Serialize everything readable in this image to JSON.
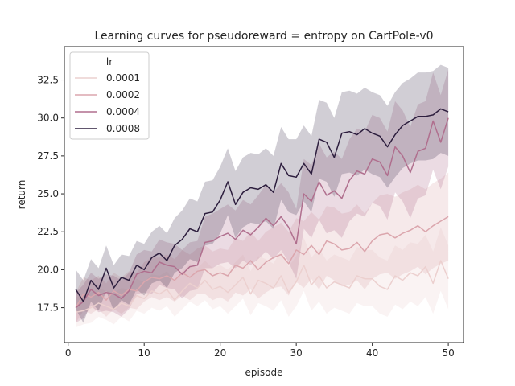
{
  "chart_data": {
    "type": "line",
    "title": "Learning curves for pseudoreward = entropy on CartPole-v0",
    "xlabel": "episode",
    "ylabel": "return",
    "xlim": [
      -0.5,
      52
    ],
    "ylim": [
      15.2,
      34.7
    ],
    "xticks": [
      0,
      10,
      20,
      30,
      40,
      50
    ],
    "yticks": [
      17.5,
      20.0,
      22.5,
      25.0,
      27.5,
      30.0,
      32.5
    ],
    "ytick_labels": [
      "17.5",
      "20.0",
      "22.5",
      "25.0",
      "27.5",
      "30.0",
      "32.5"
    ],
    "legend_title": "lr",
    "legend_position": "upper left",
    "x": [
      1,
      2,
      3,
      4,
      5,
      6,
      7,
      8,
      9,
      10,
      11,
      12,
      13,
      14,
      15,
      16,
      17,
      18,
      19,
      20,
      21,
      22,
      23,
      24,
      25,
      26,
      27,
      28,
      29,
      30,
      31,
      32,
      33,
      34,
      35,
      36,
      37,
      38,
      39,
      40,
      41,
      42,
      43,
      44,
      45,
      46,
      47,
      48,
      49,
      50
    ],
    "series": [
      {
        "name": "0.0001",
        "color": "#ecd0cf",
        "band_opacity": 0.25,
        "values": [
          17.2,
          17.3,
          17.5,
          17.8,
          17.6,
          17.4,
          17.8,
          17.6,
          18.3,
          18.1,
          18.6,
          18.4,
          18.7,
          18.0,
          18.6,
          19.1,
          18.8,
          19.3,
          18.7,
          18.9,
          18.5,
          19.0,
          19.5,
          18.4,
          19.3,
          19.1,
          18.8,
          19.6,
          18.5,
          19.2,
          20.3,
          19.0,
          19.6,
          18.8,
          19.2,
          19.0,
          18.8,
          19.6,
          19.4,
          19.4,
          18.9,
          18.7,
          19.6,
          19.3,
          19.8,
          19.6,
          20.2,
          19.1,
          20.6,
          19.4
        ],
        "lower": [
          16.2,
          16.4,
          16.5,
          16.9,
          16.7,
          16.4,
          16.9,
          16.6,
          17.3,
          17.1,
          17.5,
          17.3,
          17.6,
          16.9,
          17.4,
          17.9,
          17.6,
          18.0,
          17.4,
          17.6,
          17.1,
          17.6,
          18.1,
          17.0,
          17.8,
          17.6,
          17.3,
          18.0,
          16.9,
          17.6,
          18.6,
          17.3,
          17.9,
          17.1,
          17.5,
          17.3,
          17.1,
          17.8,
          17.6,
          17.6,
          17.1,
          16.9,
          17.7,
          17.4,
          17.9,
          17.6,
          18.2,
          17.1,
          18.6,
          17.4
        ],
        "upper": [
          18.2,
          18.3,
          18.5,
          18.8,
          18.6,
          18.5,
          18.8,
          18.7,
          19.4,
          19.2,
          19.7,
          19.6,
          19.9,
          19.2,
          19.9,
          20.4,
          20.1,
          20.6,
          20.1,
          20.3,
          20.0,
          20.5,
          21.0,
          19.9,
          20.9,
          20.7,
          20.4,
          21.3,
          20.2,
          20.9,
          22.1,
          20.8,
          21.4,
          20.6,
          21.0,
          20.8,
          20.6,
          21.5,
          21.3,
          21.3,
          20.8,
          20.6,
          21.6,
          21.3,
          21.8,
          21.7,
          22.3,
          21.2,
          22.8,
          21.6
        ]
      },
      {
        "name": "0.0002",
        "color": "#dba6ad",
        "band_opacity": 0.25,
        "values": [
          17.5,
          18.4,
          18.2,
          18.5,
          18.0,
          18.6,
          18.3,
          18.7,
          18.6,
          19.2,
          19.5,
          19.4,
          19.6,
          19.3,
          19.8,
          19.5,
          19.9,
          20.0,
          19.6,
          19.8,
          19.6,
          20.3,
          20.1,
          20.6,
          20.0,
          20.5,
          20.8,
          21.0,
          20.4,
          21.3,
          21.0,
          21.6,
          21.0,
          21.9,
          21.7,
          21.3,
          21.4,
          21.8,
          21.2,
          21.9,
          22.3,
          22.4,
          22.1,
          22.4,
          22.6,
          22.9,
          22.5,
          22.9,
          23.2,
          23.5
        ],
        "lower": [
          16.5,
          17.3,
          17.1,
          17.4,
          16.9,
          17.4,
          17.1,
          17.5,
          17.4,
          17.9,
          18.2,
          18.0,
          18.2,
          17.9,
          18.3,
          18.0,
          18.4,
          18.4,
          18.0,
          18.2,
          17.9,
          18.5,
          18.3,
          18.7,
          18.1,
          18.5,
          18.8,
          18.9,
          18.3,
          19.2,
          18.8,
          19.4,
          18.7,
          19.6,
          19.3,
          18.9,
          19.0,
          19.3,
          18.7,
          19.4,
          19.7,
          19.8,
          19.4,
          19.7,
          19.9,
          20.2,
          19.7,
          20.1,
          20.4,
          20.6
        ],
        "upper": [
          18.5,
          19.5,
          19.3,
          19.6,
          19.1,
          19.8,
          19.5,
          19.9,
          19.8,
          20.5,
          20.8,
          20.8,
          21.0,
          20.7,
          21.3,
          21.0,
          21.4,
          21.6,
          21.2,
          21.4,
          21.3,
          22.1,
          21.9,
          22.5,
          21.9,
          22.5,
          22.8,
          23.1,
          22.5,
          23.4,
          23.2,
          23.8,
          23.3,
          24.2,
          24.1,
          23.7,
          23.8,
          24.3,
          23.7,
          24.4,
          24.9,
          25.0,
          24.8,
          25.1,
          25.3,
          25.6,
          25.3,
          25.7,
          26.0,
          26.4
        ]
      },
      {
        "name": "0.0004",
        "color": "#b06f8e",
        "band_opacity": 0.25,
        "values": [
          17.5,
          17.9,
          18.7,
          18.3,
          18.5,
          18.4,
          18.1,
          18.6,
          19.7,
          19.9,
          19.8,
          20.5,
          20.3,
          20.2,
          19.7,
          20.2,
          20.3,
          21.8,
          21.9,
          22.2,
          22.4,
          22.0,
          22.6,
          22.3,
          22.8,
          23.4,
          22.9,
          23.5,
          22.8,
          21.7,
          25.0,
          24.5,
          25.8,
          24.9,
          25.2,
          24.7,
          25.9,
          26.5,
          26.3,
          27.3,
          27.1,
          26.2,
          28.1,
          27.5,
          26.4,
          27.8,
          28.0,
          29.8,
          28.4,
          30.0
        ],
        "lower": [
          16.5,
          16.8,
          17.6,
          17.2,
          17.3,
          17.2,
          16.9,
          17.4,
          18.4,
          18.5,
          18.4,
          19.0,
          18.8,
          18.7,
          18.1,
          18.6,
          18.7,
          20.1,
          20.1,
          20.4,
          20.5,
          20.1,
          20.6,
          20.3,
          20.7,
          21.2,
          20.7,
          21.3,
          20.5,
          19.4,
          22.7,
          22.1,
          23.3,
          22.4,
          22.6,
          22.1,
          23.2,
          23.7,
          23.5,
          24.4,
          24.2,
          23.3,
          25.1,
          24.5,
          23.4,
          24.7,
          24.9,
          26.6,
          25.3,
          26.8
        ],
        "upper": [
          18.5,
          19.0,
          19.8,
          19.4,
          19.7,
          19.6,
          19.3,
          19.8,
          21.0,
          21.3,
          21.2,
          22.0,
          21.8,
          21.7,
          21.3,
          21.8,
          21.9,
          23.5,
          23.7,
          24.0,
          24.3,
          23.9,
          24.6,
          24.3,
          24.9,
          25.6,
          25.1,
          25.7,
          25.1,
          24.0,
          27.3,
          26.9,
          28.3,
          27.4,
          27.8,
          27.3,
          28.6,
          29.3,
          29.1,
          30.2,
          30.0,
          29.1,
          31.1,
          30.5,
          29.4,
          30.9,
          31.1,
          33.0,
          31.5,
          33.2
        ]
      },
      {
        "name": "0.0008",
        "color": "#2d1e3e",
        "band_opacity": 0.22,
        "values": [
          18.7,
          17.9,
          19.3,
          18.7,
          20.1,
          18.8,
          19.5,
          19.3,
          20.3,
          20.0,
          20.8,
          21.1,
          20.6,
          21.6,
          22.0,
          22.7,
          22.5,
          23.7,
          23.8,
          24.6,
          25.8,
          24.3,
          25.1,
          25.4,
          25.3,
          25.6,
          25.1,
          27.0,
          26.2,
          26.1,
          27.0,
          26.3,
          28.6,
          28.4,
          27.4,
          29.0,
          29.1,
          28.9,
          29.3,
          29.0,
          28.8,
          28.1,
          28.9,
          29.5,
          29.8,
          30.1,
          30.1,
          30.2,
          30.6,
          30.4
        ],
        "lower": [
          17.4,
          16.5,
          17.9,
          17.3,
          18.6,
          17.3,
          18.0,
          17.7,
          18.7,
          18.3,
          19.1,
          19.3,
          18.8,
          19.8,
          20.1,
          20.7,
          20.5,
          21.6,
          21.7,
          22.4,
          23.6,
          22.1,
          22.8,
          23.1,
          23.0,
          23.2,
          22.7,
          24.6,
          23.8,
          23.6,
          24.5,
          23.8,
          26.0,
          25.8,
          24.8,
          26.3,
          26.4,
          26.2,
          26.6,
          26.3,
          26.1,
          25.4,
          26.1,
          26.7,
          27.0,
          27.2,
          27.2,
          27.3,
          27.7,
          27.5
        ],
        "upper": [
          20.0,
          19.3,
          20.7,
          20.1,
          21.6,
          20.3,
          21.0,
          20.9,
          21.9,
          21.7,
          22.5,
          22.9,
          22.4,
          23.4,
          23.9,
          24.7,
          24.5,
          25.8,
          25.9,
          26.8,
          28.0,
          26.5,
          27.4,
          27.7,
          27.6,
          28.0,
          27.5,
          29.4,
          28.6,
          28.6,
          29.5,
          28.8,
          31.2,
          31.0,
          30.0,
          31.7,
          31.8,
          31.6,
          32.0,
          31.7,
          31.5,
          30.8,
          31.7,
          32.3,
          32.6,
          33.0,
          33.0,
          33.1,
          33.5,
          33.3
        ]
      }
    ]
  }
}
